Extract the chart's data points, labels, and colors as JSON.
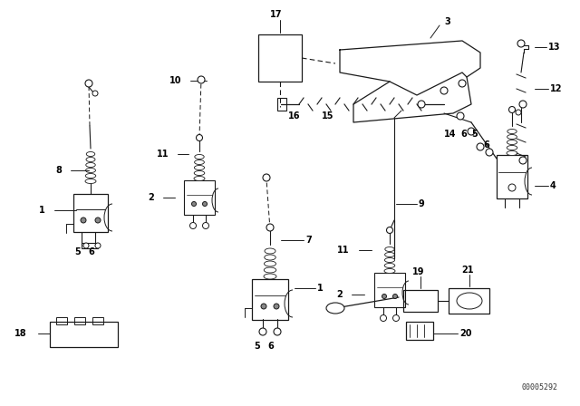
{
  "bg_color": "#ffffff",
  "fig_width": 6.4,
  "fig_height": 4.48,
  "dpi": 100,
  "diagram_code": "00005292",
  "line_color": "#1a1a1a",
  "text_color": "#000000",
  "label_fontsize": 7.0
}
